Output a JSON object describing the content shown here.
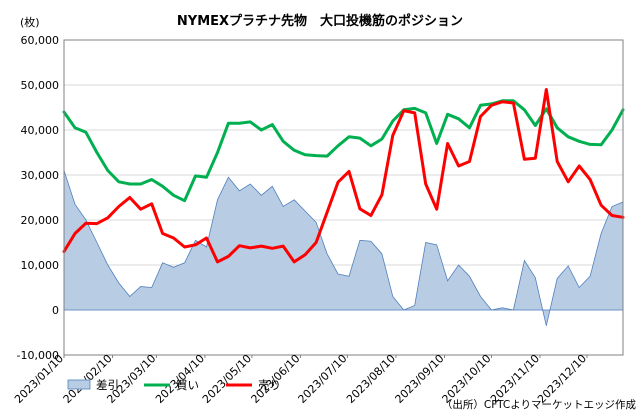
{
  "chart_data": {
    "type": "line",
    "title": "NYMEXプラチナ先物　大口投機筋のポジション",
    "unit_label": "(枚)",
    "source": "（出所）CFTCよりマーケットエッジ作成",
    "x": [
      "2023/01/10",
      "2023/01/17",
      "2023/01/24",
      "2023/01/31",
      "2023/02/07",
      "2023/02/14",
      "2023/02/21",
      "2023/02/28",
      "2023/03/07",
      "2023/03/14",
      "2023/03/21",
      "2023/03/28",
      "2023/04/04",
      "2023/04/11",
      "2023/04/18",
      "2023/04/25",
      "2023/05/02",
      "2023/05/09",
      "2023/05/16",
      "2023/05/23",
      "2023/05/30",
      "2023/06/06",
      "2023/06/13",
      "2023/06/20",
      "2023/06/27",
      "2023/07/04",
      "2023/07/11",
      "2023/07/18",
      "2023/07/25",
      "2023/08/01",
      "2023/08/08",
      "2023/08/15",
      "2023/08/22",
      "2023/08/29",
      "2023/09/05",
      "2023/09/12",
      "2023/09/19",
      "2023/09/26",
      "2023/10/03",
      "2023/10/10",
      "2023/10/17",
      "2023/10/24",
      "2023/10/31",
      "2023/11/07",
      "2023/11/14",
      "2023/11/21",
      "2023/11/28",
      "2023/12/05",
      "2023/12/12",
      "2023/12/19",
      "2023/12/26",
      "2024/01/02"
    ],
    "xtick_labels": [
      "2023/01/10",
      "2023/02/10",
      "2023/03/10",
      "2023/04/10",
      "2023/05/10",
      "2023/06/10",
      "2023/07/10",
      "2023/08/10",
      "2023/09/10",
      "2023/10/10",
      "2023/11/10",
      "2023/12/10"
    ],
    "xtick_dates": [
      "2023/01/10",
      "2023/02/10",
      "2023/03/10",
      "2023/04/10",
      "2023/05/10",
      "2023/06/10",
      "2023/07/10",
      "2023/08/10",
      "2023/09/10",
      "2023/10/10",
      "2023/11/10",
      "2023/12/10"
    ],
    "ylim": [
      -10000,
      60000
    ],
    "yticks": [
      -10000,
      0,
      10000,
      20000,
      30000,
      40000,
      50000,
      60000
    ],
    "ytick_labels": [
      "-10,000",
      "0",
      "10,000",
      "20,000",
      "30,000",
      "40,000",
      "50,000",
      "60,000"
    ],
    "grid": true,
    "legend_position": "bottom",
    "series": [
      {
        "name": "差引",
        "style": "area",
        "color": "#b8cce4",
        "edge_color": "#4f81bd",
        "values": [
          31000,
          23500,
          20000,
          15000,
          10000,
          6000,
          3000,
          5200,
          5000,
          10500,
          9500,
          10500,
          15500,
          14000,
          24500,
          29500,
          26500,
          28000,
          25500,
          27500,
          23000,
          24500,
          22000,
          19500,
          12500,
          8000,
          7500,
          15500,
          15300,
          12500,
          3000,
          0,
          1000,
          15000,
          14500,
          6500,
          10000,
          7500,
          3000,
          0,
          500,
          0,
          11000,
          7200,
          -3500,
          7000,
          9800,
          5000,
          7500,
          17000,
          23000,
          24000
        ]
      },
      {
        "name": "買い",
        "style": "line",
        "color": "#00b050",
        "values": [
          44000,
          40500,
          39500,
          35000,
          31000,
          28500,
          28000,
          28000,
          29000,
          27500,
          25500,
          24300,
          29800,
          29500,
          35000,
          41500,
          41500,
          41800,
          40000,
          41200,
          37500,
          35500,
          34500,
          34300,
          34200,
          36500,
          38500,
          38200,
          36500,
          38000,
          42000,
          44500,
          44800,
          43800,
          37000,
          43500,
          42500,
          40500,
          45500,
          45800,
          46500,
          46500,
          44500,
          41000,
          44700,
          40500,
          38500,
          37500,
          36800,
          36700,
          40000,
          44500
        ]
      },
      {
        "name": "売り",
        "style": "line",
        "color": "#ff0000",
        "values": [
          13000,
          17000,
          19300,
          19200,
          20500,
          23000,
          25000,
          22400,
          23600,
          17000,
          16000,
          14000,
          14500,
          16000,
          10700,
          11900,
          14300,
          13800,
          14200,
          13700,
          14200,
          10700,
          12300,
          15000,
          21700,
          28400,
          30800,
          22500,
          21000,
          25600,
          38800,
          44300,
          43800,
          28000,
          22400,
          37000,
          32000,
          33000,
          43000,
          45500,
          46300,
          46000,
          33500,
          33700,
          49000,
          33000,
          28500,
          32000,
          29000,
          23300,
          21000,
          20600
        ]
      }
    ]
  }
}
